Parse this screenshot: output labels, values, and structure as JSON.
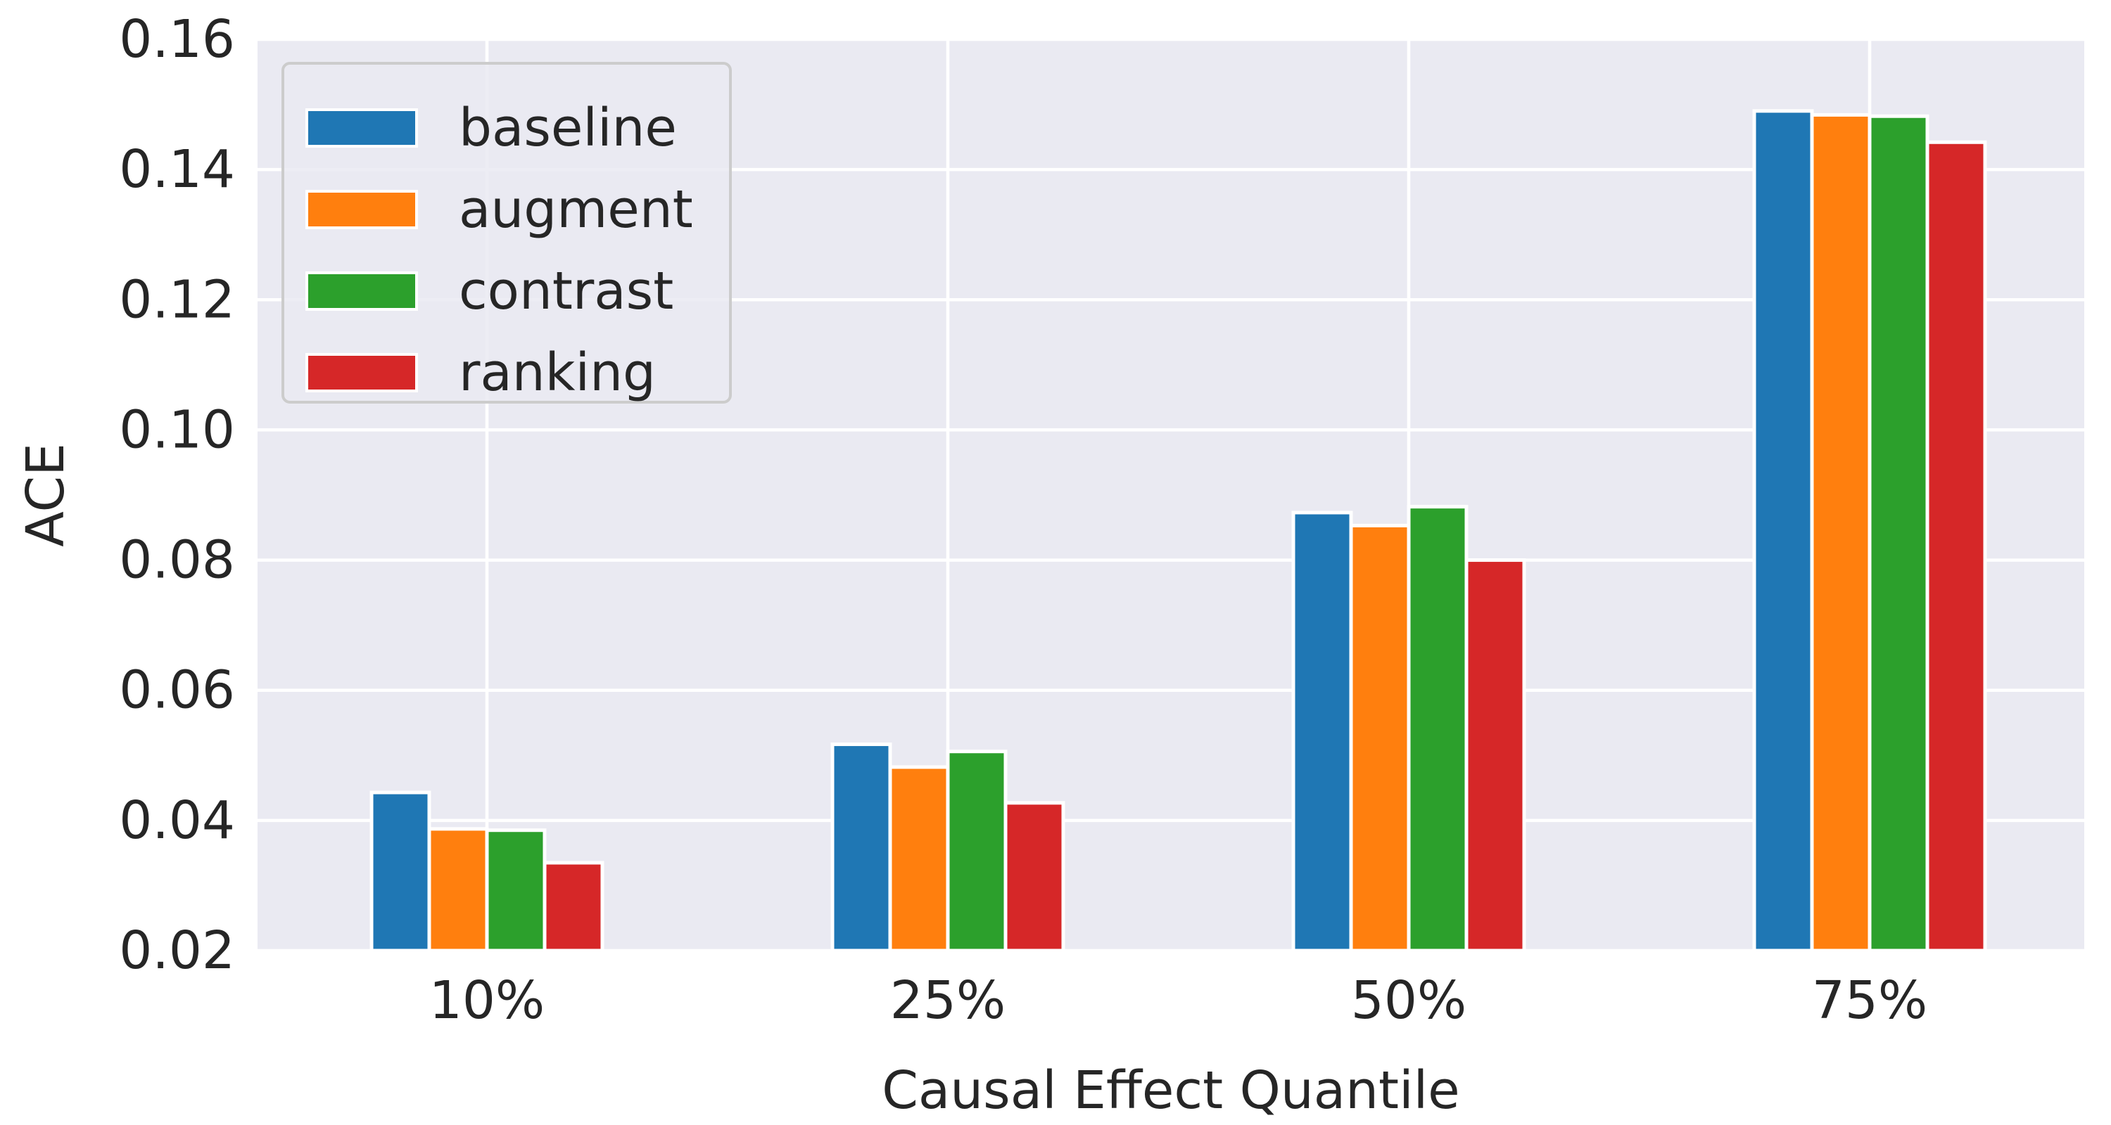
{
  "chart_data": {
    "type": "bar",
    "title": "",
    "xlabel": "Causal Effect Quantile",
    "ylabel": "ACE",
    "categories": [
      "10%",
      "25%",
      "50%",
      "75%"
    ],
    "series": [
      {
        "name": "baseline",
        "color": "#1f77b4",
        "values": [
          0.0443,
          0.0517,
          0.0873,
          0.149
        ]
      },
      {
        "name": "augment",
        "color": "#ff7f0e",
        "values": [
          0.0387,
          0.0482,
          0.0853,
          0.1484
        ]
      },
      {
        "name": "contrast",
        "color": "#2ca02c",
        "values": [
          0.0385,
          0.0506,
          0.0882,
          0.1482
        ]
      },
      {
        "name": "ranking",
        "color": "#d62728",
        "values": [
          0.0335,
          0.0427,
          0.08,
          0.1442
        ]
      }
    ],
    "ylim": [
      0.02,
      0.16
    ],
    "yticks": [
      "0.02",
      "0.04",
      "0.06",
      "0.08",
      "0.10",
      "0.12",
      "0.14",
      "0.16"
    ],
    "grid": true,
    "legend_position": "top-left",
    "plot_background": "#eaeaf2",
    "grid_color": "#ffffff"
  }
}
